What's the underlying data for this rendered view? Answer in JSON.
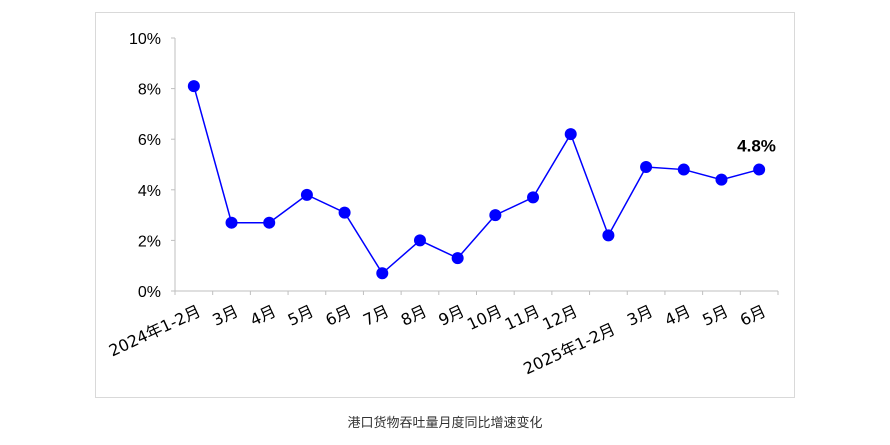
{
  "chart_data": {
    "type": "line",
    "title": "",
    "caption": "港口货物吞吐量月度同比增速变化",
    "categories": [
      "2024年1-2月",
      "3月",
      "4月",
      "5月",
      "6月",
      "7月",
      "8月",
      "9月",
      "10月",
      "11月",
      "12月",
      "2025年1-2月",
      "3月",
      "4月",
      "5月",
      "6月"
    ],
    "series": [
      {
        "values": [
          8.1,
          2.7,
          2.7,
          3.8,
          3.1,
          0.7,
          2.0,
          1.3,
          3.0,
          3.7,
          6.2,
          2.2,
          4.9,
          4.8,
          4.4,
          4.8
        ]
      }
    ],
    "ylim": [
      0,
      10
    ],
    "yticks": [
      "0%",
      "2%",
      "4%",
      "6%",
      "8%",
      "10%"
    ],
    "data_labels": [
      {
        "index": 15,
        "text": "4.8%"
      }
    ],
    "grid": false,
    "line_color": "#0000ff"
  }
}
